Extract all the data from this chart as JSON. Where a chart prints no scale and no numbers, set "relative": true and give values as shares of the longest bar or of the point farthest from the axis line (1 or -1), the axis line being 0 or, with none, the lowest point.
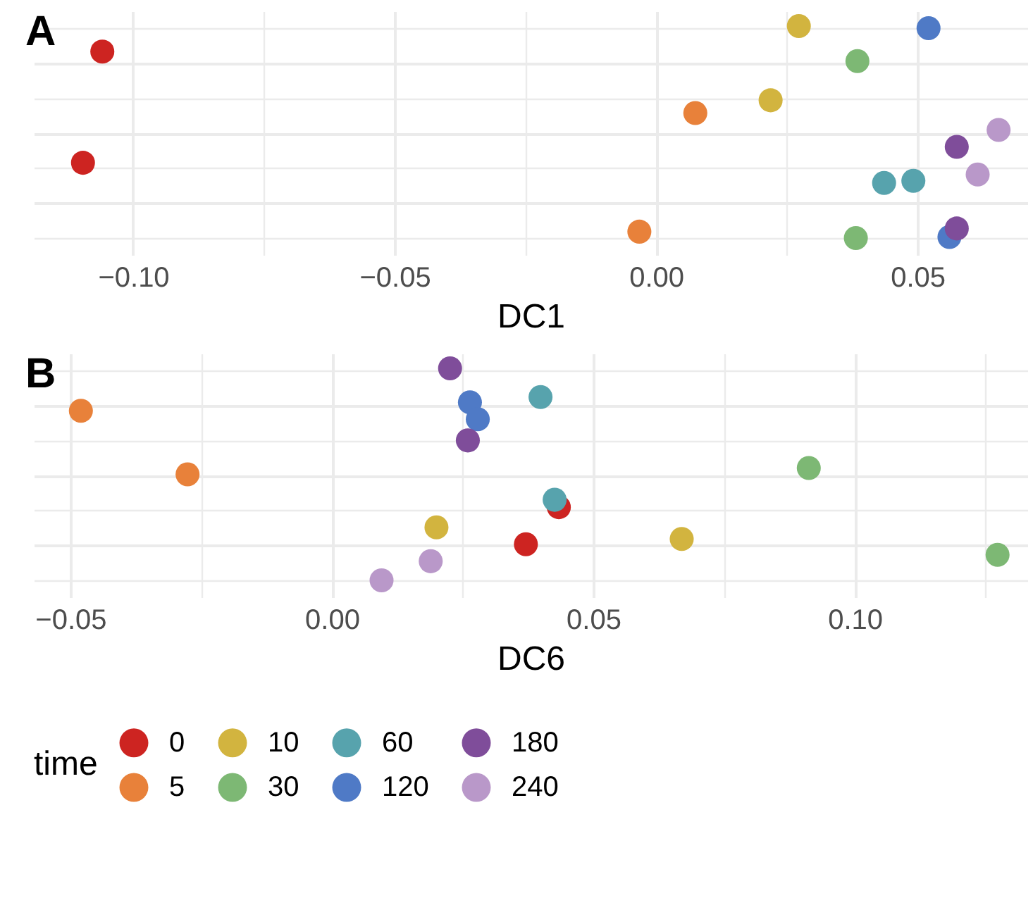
{
  "chart_data": [
    {
      "type": "scatter",
      "title": "A",
      "xlabel": "DC1",
      "relative": true,
      "grid": true,
      "tick_labels": "x",
      "legend": false,
      "marker": "circle",
      "xlim": [
        -0.119,
        0.071
      ],
      "xticks": [
        {
          "value": -0.1,
          "label": "−0.10"
        },
        {
          "value": -0.075,
          "label": null
        },
        {
          "value": -0.05,
          "label": "−0.05"
        },
        {
          "value": -0.025,
          "label": null
        },
        {
          "value": 0,
          "label": "0.00"
        },
        {
          "value": 0.025,
          "label": null
        },
        0.05
      ],
      "series": [
        {
          "color": "#cd2421",
          "x": [
            -0.1059,
            -0.1096
          ],
          "values": [
            0.88,
            0.355
          ]
        },
        {
          "color": "#e8813a",
          "x": [
            0.0075,
            -0.0032
          ],
          "values": [
            0.59,
            0.03
          ]
        },
        {
          "color": "#d2b43f",
          "x": [
            0.0273,
            0.0219
          ],
          "values": [
            1.0,
            0.65
          ]
        },
        {
          "color": "#7db874",
          "x": [
            0.0385,
            0.0382
          ],
          "values": [
            0.835,
            0
          ]
        },
        {
          "color": "#57a3ad",
          "x": [
            0.0436,
            0.0492
          ],
          "values": [
            0.26,
            0.27
          ]
        },
        {
          "color": "#4f7ac6",
          "x": [
            0.0521,
            0.0561
          ],
          "values": [
            0.99,
            0.005
          ]
        },
        {
          "color": "#7f4d9a",
          "x": [
            0.0575,
            0.0575
          ],
          "values": [
            0.43,
            0.045
          ]
        },
        {
          "color": "#b998c9",
          "x": [
            0.0655,
            0.0615
          ],
          "values": [
            0.51,
            0.3
          ]
        }
      ]
    },
    {
      "type": "scatter",
      "title": "B",
      "xlabel": "DC6",
      "relative": true,
      "grid": true,
      "tick_labels": "x",
      "legend": "bottom",
      "legend_title": "time",
      "marker": "circle",
      "xlim": [
        -0.057,
        0.133
      ],
      "xticks": [
        {
          "value": -0.05,
          "label": "−0.05"
        },
        {
          "value": -0.025,
          "label": null
        },
        {
          "value": 0,
          "label": "0.00"
        },
        {
          "value": 0.025,
          "label": null
        },
        0.05,
        {
          "value": 0.075,
          "label": null
        },
        {
          "value": 0.1,
          "label": "0.10"
        },
        {
          "value": 0.125,
          "label": null
        }
      ],
      "series": [
        {
          "name": "0",
          "color": "#cd2421",
          "x": [
            0.0434,
            0.0371
          ],
          "values": [
            0.345,
            0.17
          ]
        },
        {
          "name": "5",
          "color": "#e8813a",
          "x": [
            -0.048,
            -0.0276
          ],
          "values": [
            0.8,
            0.5
          ]
        },
        {
          "name": "10",
          "color": "#d2b43f",
          "x": [
            0.02,
            0.0669
          ],
          "values": [
            0.25,
            0.195
          ]
        },
        {
          "name": "30",
          "color": "#7db874",
          "x": [
            0.0912,
            0.1273
          ],
          "values": [
            0.53,
            0.12
          ]
        },
        {
          "name": "60",
          "color": "#57a3ad",
          "x": [
            0.0399,
            0.0426
          ],
          "values": [
            0.865,
            0.38
          ]
        },
        {
          "name": "120",
          "color": "#4f7ac6",
          "x": [
            0.0264,
            0.0279
          ],
          "values": [
            0.84,
            0.76
          ]
        },
        {
          "name": "180",
          "color": "#7f4d9a",
          "x": [
            0.0226,
            0.026
          ],
          "values": [
            1.0,
            0.66
          ]
        },
        {
          "name": "240",
          "color": "#b998c9",
          "x": [
            0.0189,
            0.0095
          ],
          "values": [
            0.09,
            0
          ]
        }
      ]
    }
  ]
}
